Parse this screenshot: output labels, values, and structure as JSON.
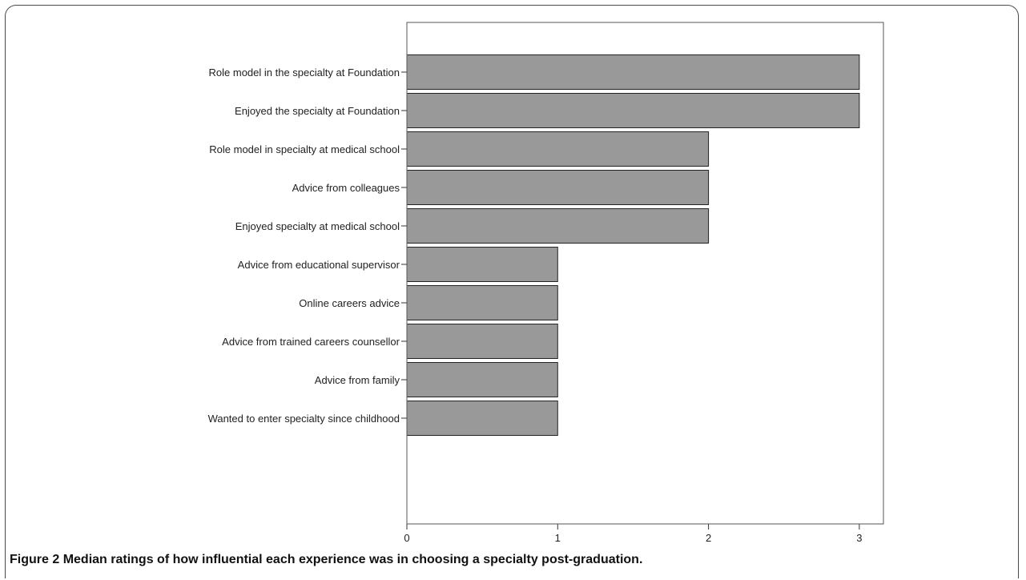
{
  "figure": {
    "label": "Figure 2",
    "caption": "Median ratings of how influential each experience was in choosing a specialty post-graduation."
  },
  "chart_data": {
    "type": "bar",
    "orientation": "horizontal",
    "categories": [
      "Role model in the specialty at Foundation",
      "Enjoyed the specialty at Foundation",
      "Role model in specialty at medical school",
      "Advice from colleagues",
      "Enjoyed specialty at medical school",
      "Advice from educational supervisor",
      "Online careers advice",
      "Advice from trained careers counsellor",
      "Advice from family",
      "Wanted to enter specialty since childhood"
    ],
    "values": [
      3,
      3,
      2,
      2,
      2,
      1,
      1,
      1,
      1,
      1
    ],
    "xticks": [
      "0",
      "1",
      "2",
      "3"
    ],
    "xlim": [
      0,
      3.16
    ],
    "title": "",
    "xlabel": "",
    "ylabel": "",
    "grid": false,
    "bar_color": "#999999"
  }
}
